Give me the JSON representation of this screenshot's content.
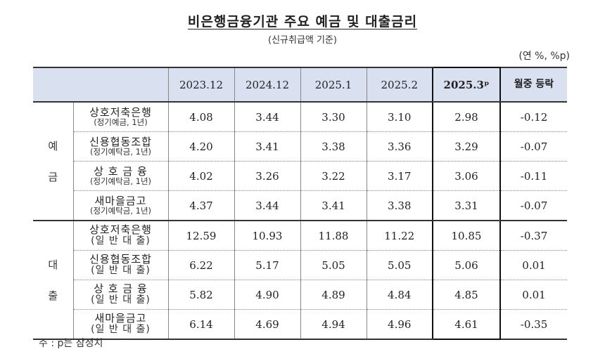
{
  "title": "비은행금융기관 주요 예금 및 대출금리",
  "subtitle": "(신규취급액 기준)",
  "unit": "(연 %, %p)",
  "columns": [
    "2023.12",
    "2024.12",
    "2025.1",
    "2025.2",
    "2025.3ᵖ",
    "월중 등락"
  ],
  "groups": [
    {
      "label_top": "예",
      "label_bottom": "금",
      "rows": [
        {
          "name": "상호저축은행",
          "type": "(정기예금, 1년)",
          "values": [
            "4.08",
            "3.44",
            "3.30",
            "3.10",
            "2.98",
            "-0.12"
          ]
        },
        {
          "name": "신용협동조합",
          "type": "(정기예탁금, 1년)",
          "values": [
            "4.20",
            "3.41",
            "3.38",
            "3.36",
            "3.29",
            "-0.07"
          ]
        },
        {
          "name": "상 호 금 융",
          "type": "(정기예탁금, 1년)",
          "values": [
            "4.02",
            "3.26",
            "3.22",
            "3.17",
            "3.06",
            "-0.11"
          ]
        },
        {
          "name": "새마을금고",
          "type": "(정기예탁금, 1년)",
          "values": [
            "4.37",
            "3.44",
            "3.41",
            "3.38",
            "3.31",
            "-0.07"
          ]
        }
      ]
    },
    {
      "label_top": "대",
      "label_bottom": "출",
      "rows": [
        {
          "name": "상호저축은행",
          "type": "(일 반 대 출)",
          "values": [
            "12.59",
            "10.93",
            "11.88",
            "11.22",
            "10.85",
            "-0.37"
          ]
        },
        {
          "name": "신용협동조합",
          "type": "(일 반 대 출)",
          "values": [
            "6.22",
            "5.17",
            "5.05",
            "5.05",
            "5.06",
            "0.01"
          ]
        },
        {
          "name": "상 호 금 융",
          "type": "(일 반 대 출)",
          "values": [
            "5.82",
            "4.90",
            "4.89",
            "4.84",
            "4.85",
            "0.01"
          ]
        },
        {
          "name": "새마을금고",
          "type": "(일 반 대 출)",
          "values": [
            "6.14",
            "4.69",
            "4.94",
            "4.96",
            "4.61",
            "-0.35"
          ]
        }
      ]
    }
  ],
  "footnote": "주 : p는 잠정치"
}
